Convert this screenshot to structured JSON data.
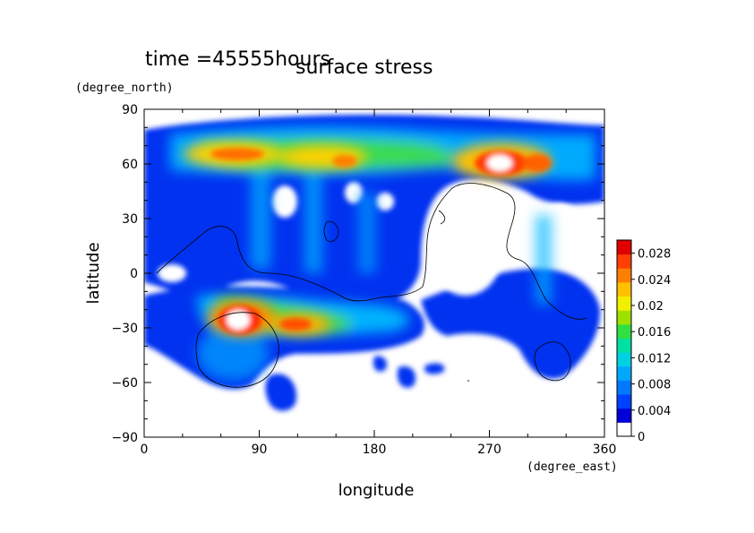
{
  "chart_data": {
    "type": "heatmap",
    "title": "surface stress",
    "subtitle": "time =45555hours",
    "xlabel": "longitude",
    "ylabel": "latitude",
    "x_units": "(degree_east)",
    "y_units": "(degree_north)",
    "xlim": [
      0,
      360
    ],
    "ylim": [
      -90,
      90
    ],
    "x_ticks": [
      0,
      90,
      180,
      270,
      360
    ],
    "x_tick_labels": [
      "0",
      "90",
      "180",
      "270",
      "360"
    ],
    "y_ticks": [
      90,
      60,
      30,
      0,
      -30,
      -60,
      -90
    ],
    "y_tick_labels": [
      "90",
      "60",
      "30",
      "0",
      "−30",
      "−60",
      "−90"
    ],
    "colorbar": {
      "range": [
        0,
        0.03
      ],
      "tick_values": [
        0,
        0.004,
        0.008,
        0.012,
        0.016,
        0.02,
        0.024,
        0.028
      ],
      "tick_labels": [
        "0",
        "0.004",
        "0.008",
        "0.012",
        "0.016",
        "0.02",
        "0.024",
        "0.028"
      ],
      "colors": [
        "#ffffff",
        "#0000d8",
        "#0040ff",
        "#0078ff",
        "#00a8ff",
        "#00d0e0",
        "#00e0a0",
        "#30e040",
        "#a0e000",
        "#f0f000",
        "#ffc000",
        "#ff8000",
        "#ff4000",
        "#e00000"
      ]
    },
    "grid": false,
    "features": [
      {
        "name": "polar jet",
        "lon": [
          0,
          360
        ],
        "lat": [
          55,
          75
        ],
        "value": 0.012
      },
      {
        "name": "core 1",
        "lon": 60,
        "lat": 64,
        "value": 0.02
      },
      {
        "name": "core 2",
        "lon": 160,
        "lat": 63,
        "value": 0.022
      },
      {
        "name": "core 3",
        "lon": 290,
        "lat": 63,
        "value": 0.028
      },
      {
        "name": "southern band",
        "lon": [
          10,
          210
        ],
        "lat": [
          -35,
          -20
        ],
        "value": 0.012
      },
      {
        "name": "southern core",
        "lon": 75,
        "lat": -30,
        "value": 0.028
      },
      {
        "name": "southern core 2",
        "lon": 130,
        "lat": -30,
        "value": 0.022
      }
    ]
  }
}
